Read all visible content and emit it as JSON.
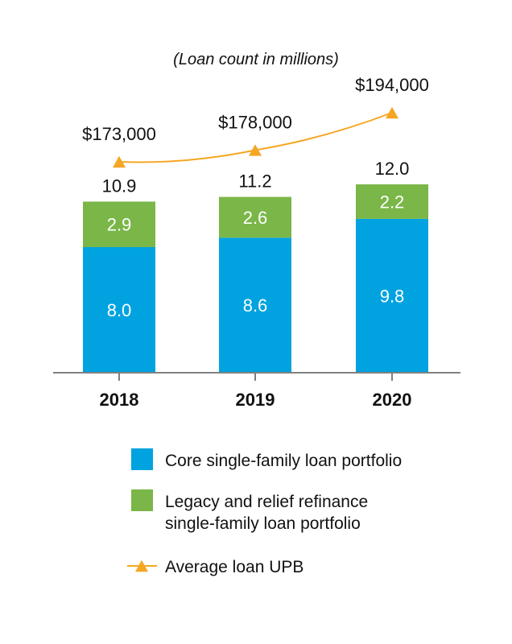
{
  "chart_data": {
    "type": "bar",
    "subtitle": "(Loan count in millions)",
    "categories": [
      "2018",
      "2019",
      "2020"
    ],
    "series": [
      {
        "name": "Core single-family loan portfolio",
        "kind": "bar",
        "stacked": true,
        "color": "#00a3e0",
        "values": [
          8.0,
          8.6,
          9.8
        ],
        "labels": [
          "8.0",
          "8.6",
          "9.8"
        ]
      },
      {
        "name": "Legacy and relief refinance single-family loan portfolio",
        "kind": "bar",
        "stacked": true,
        "color": "#7ab648",
        "values": [
          2.9,
          2.6,
          2.2
        ],
        "labels": [
          "2.9",
          "2.6",
          "2.2"
        ]
      },
      {
        "name": "Average loan UPB",
        "kind": "line",
        "marker": "triangle",
        "color": "#f5a623",
        "values": [
          173000,
          178000,
          194000
        ],
        "labels": [
          "$173,000",
          "$178,000",
          "$194,000"
        ]
      }
    ],
    "totals": [
      10.9,
      11.2,
      12.0
    ],
    "total_labels": [
      "10.9",
      "11.2",
      "12.0"
    ],
    "legend": {
      "position": "bottom",
      "items": [
        {
          "lines": [
            "Core single-family loan portfolio"
          ],
          "swatch": "square",
          "color": "#00a3e0"
        },
        {
          "lines": [
            "Legacy and relief refinance",
            "single-family loan portfolio"
          ],
          "swatch": "square",
          "color": "#7ab648"
        },
        {
          "lines": [
            "Average loan UPB"
          ],
          "swatch": "line-triangle",
          "color": "#f5a623"
        }
      ]
    },
    "grid": false
  }
}
